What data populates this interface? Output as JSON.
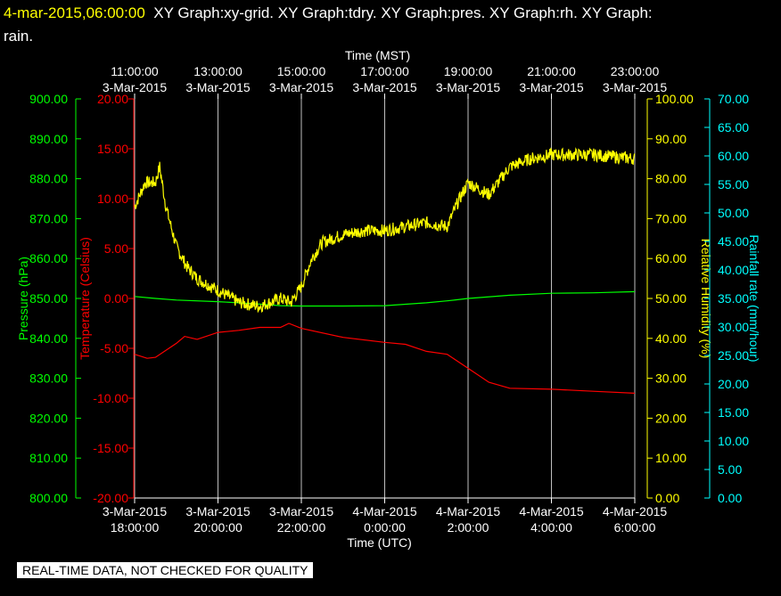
{
  "header": {
    "timestamp": "4-mar-2015,06:00:00",
    "graphs_line1": "XY Graph:xy-grid.  XY Graph:tdry.  XY Graph:pres.  XY Graph:rh.  XY Graph:",
    "graphs_line2": "rain."
  },
  "footer": {
    "quality_note": "REAL-TIME DATA, NOT CHECKED FOR QUALITY"
  },
  "colors": {
    "background": "#000000",
    "grid": "#ffffff",
    "pressure": "#00ff00",
    "temperature": "#ff0000",
    "humidity": "#ffff00",
    "rain": "#00ffff"
  },
  "chart_data": {
    "type": "line",
    "x_top_title": "Time (MST)",
    "x_bottom_title": "Time (UTC)",
    "x_hours": [
      0,
      2,
      4,
      6,
      8,
      10,
      12
    ],
    "x_top_ticks": [
      {
        "time": "11:00:00",
        "date": "3-Mar-2015"
      },
      {
        "time": "13:00:00",
        "date": "3-Mar-2015"
      },
      {
        "time": "15:00:00",
        "date": "3-Mar-2015"
      },
      {
        "time": "17:00:00",
        "date": "3-Mar-2015"
      },
      {
        "time": "19:00:00",
        "date": "3-Mar-2015"
      },
      {
        "time": "21:00:00",
        "date": "3-Mar-2015"
      },
      {
        "time": "23:00:00",
        "date": "3-Mar-2015"
      }
    ],
    "x_bottom_ticks": [
      {
        "date": "3-Mar-2015",
        "time": "18:00:00"
      },
      {
        "date": "3-Mar-2015",
        "time": "20:00:00"
      },
      {
        "date": "3-Mar-2015",
        "time": "22:00:00"
      },
      {
        "date": "4-Mar-2015",
        "time": "0:00:00"
      },
      {
        "date": "4-Mar-2015",
        "time": "2:00:00"
      },
      {
        "date": "4-Mar-2015",
        "time": "4:00:00"
      },
      {
        "date": "4-Mar-2015",
        "time": "6:00:00"
      }
    ],
    "grid": true,
    "axes": {
      "pressure": {
        "label": "Pressure (hPa)",
        "ylim": [
          800,
          900
        ],
        "ticks": [
          "800.00",
          "810.00",
          "820.00",
          "830.00",
          "840.00",
          "850.00",
          "860.00",
          "870.00",
          "880.00",
          "890.00",
          "900.00"
        ]
      },
      "temperature": {
        "label": "Temperature (Celsius)",
        "ylim": [
          -20,
          20
        ],
        "ticks": [
          "-20.00",
          "-15.00",
          "-10.00",
          "-5.00",
          "0.00",
          "5.00",
          "10.00",
          "15.00",
          "20.00"
        ]
      },
      "humidity": {
        "label": "Relative Humidity (%)",
        "ylim": [
          0,
          100
        ],
        "ticks": [
          "0.00",
          "10.00",
          "20.00",
          "30.00",
          "40.00",
          "50.00",
          "60.00",
          "70.00",
          "80.00",
          "90.00",
          "100.00"
        ]
      },
      "rain": {
        "label": "Rainfall rate (mm/hour)",
        "ylim": [
          0,
          70
        ],
        "ticks": [
          "0.00",
          "5.00",
          "10.00",
          "15.00",
          "20.00",
          "25.00",
          "30.00",
          "35.00",
          "40.00",
          "45.00",
          "50.00",
          "55.00",
          "60.00",
          "65.00",
          "70.00"
        ]
      }
    },
    "series": [
      {
        "axis": "pressure",
        "x": [
          0,
          0.5,
          1,
          2,
          3,
          3.5,
          4,
          5,
          6,
          7,
          7.5,
          8,
          9,
          10,
          11,
          12
        ],
        "y": [
          850.5,
          850.0,
          849.6,
          849.2,
          848.6,
          848.2,
          848.1,
          848.1,
          848.2,
          848.9,
          849.4,
          850.0,
          850.8,
          851.3,
          851.4,
          851.7
        ]
      },
      {
        "axis": "temperature",
        "x": [
          0,
          0.3,
          0.5,
          1,
          1.2,
          1.5,
          2,
          2.5,
          3,
          3.5,
          3.7,
          4,
          5,
          6,
          6.5,
          7,
          7.5,
          8,
          8.5,
          9,
          10,
          11,
          12
        ],
        "y": [
          -5.6,
          -6.0,
          -5.9,
          -4.5,
          -3.8,
          -4.1,
          -3.4,
          -3.2,
          -2.9,
          -2.9,
          -2.5,
          -3.0,
          -3.9,
          -4.4,
          -4.6,
          -5.3,
          -5.6,
          -7.0,
          -8.4,
          -9.0,
          -9.1,
          -9.3,
          -9.5
        ]
      },
      {
        "axis": "humidity",
        "x": [
          0,
          0.25,
          0.5,
          0.6,
          0.75,
          1,
          1.25,
          1.5,
          2,
          2.5,
          3,
          3.5,
          3.75,
          4,
          4.25,
          4.5,
          5,
          5.5,
          6,
          6.5,
          7,
          7.5,
          7.75,
          8,
          8.5,
          9,
          9.5,
          10,
          11,
          12
        ],
        "y": [
          73,
          79,
          79,
          83,
          73,
          63,
          58,
          55,
          52,
          49,
          48,
          50,
          49,
          53,
          60,
          64,
          66,
          67,
          67,
          68,
          69,
          68,
          74,
          79,
          76,
          83,
          85,
          86,
          86,
          85
        ]
      }
    ]
  }
}
